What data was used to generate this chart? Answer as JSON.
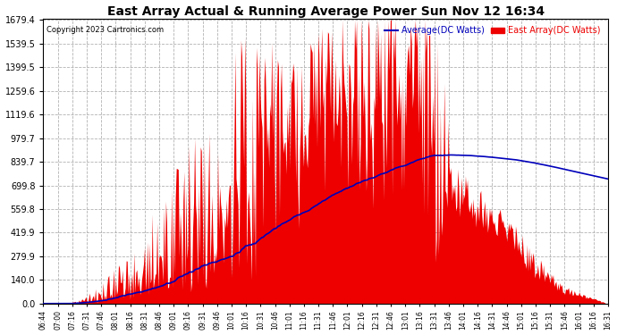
{
  "title": "East Array Actual & Running Average Power Sun Nov 12 16:34",
  "copyright": "Copyright 2023 Cartronics.com",
  "legend_avg": "Average(DC Watts)",
  "legend_east": "East Array(DC Watts)",
  "yticks": [
    0.0,
    140.0,
    279.9,
    419.9,
    559.8,
    699.8,
    839.7,
    979.7,
    1119.6,
    1259.6,
    1399.5,
    1539.5,
    1679.4
  ],
  "ymin": 0.0,
  "ymax": 1679.4,
  "background_color": "#ffffff",
  "grid_color": "#aaaaaa",
  "area_color": "#ee0000",
  "avg_line_color": "#0000bb",
  "title_color": "#000000",
  "copyright_color": "#000000",
  "xtick_labels": [
    "06:44",
    "07:00",
    "07:16",
    "07:31",
    "07:46",
    "08:01",
    "08:16",
    "08:31",
    "08:46",
    "09:01",
    "09:16",
    "09:31",
    "09:46",
    "10:01",
    "10:16",
    "10:31",
    "10:46",
    "11:01",
    "11:16",
    "11:31",
    "11:46",
    "12:01",
    "12:16",
    "12:31",
    "12:46",
    "13:01",
    "13:16",
    "13:31",
    "13:46",
    "14:01",
    "14:16",
    "14:31",
    "14:46",
    "15:01",
    "15:16",
    "15:31",
    "15:46",
    "16:01",
    "16:16",
    "16:31"
  ],
  "figwidth": 6.9,
  "figheight": 3.75,
  "dpi": 100
}
